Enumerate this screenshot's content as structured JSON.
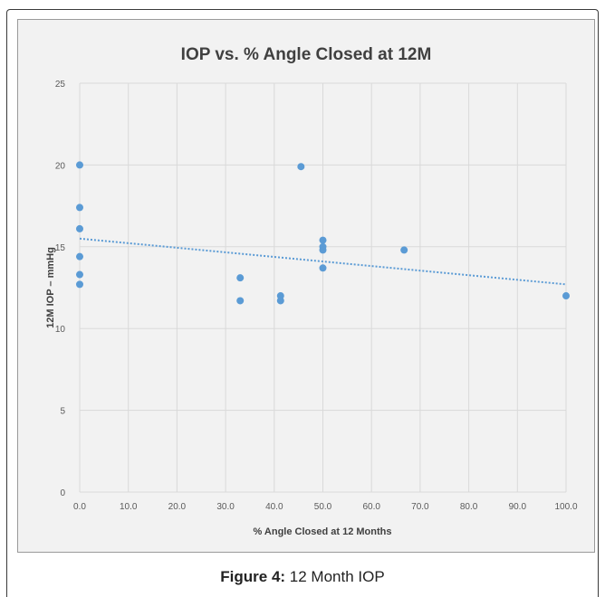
{
  "chart_data": {
    "type": "scatter",
    "title": "IOP vs. % Angle Closed at 12M",
    "xlabel": "% Angle Closed at 12 Months",
    "ylabel": "12M IOP – mmHg",
    "xlim": [
      0,
      100
    ],
    "ylim": [
      0,
      25
    ],
    "x_ticks": [
      "0.0",
      "10.0",
      "20.0",
      "30.0",
      "40.0",
      "50.0",
      "60.0",
      "70.0",
      "80.0",
      "90.0",
      "100.0"
    ],
    "y_ticks": [
      "0",
      "5",
      "10",
      "15",
      "20",
      "25"
    ],
    "grid": true,
    "series": [
      {
        "color": "#5b9bd5",
        "points": [
          {
            "x": 0,
            "y": 20.0
          },
          {
            "x": 0,
            "y": 17.4
          },
          {
            "x": 0,
            "y": 16.1
          },
          {
            "x": 0,
            "y": 14.4
          },
          {
            "x": 0,
            "y": 13.3
          },
          {
            "x": 0,
            "y": 12.7
          },
          {
            "x": 33.0,
            "y": 13.1
          },
          {
            "x": 33.0,
            "y": 11.7
          },
          {
            "x": 41.3,
            "y": 12.0
          },
          {
            "x": 41.3,
            "y": 11.7
          },
          {
            "x": 45.5,
            "y": 19.9
          },
          {
            "x": 50.0,
            "y": 15.4
          },
          {
            "x": 50.0,
            "y": 15.0
          },
          {
            "x": 50.0,
            "y": 14.8
          },
          {
            "x": 50.0,
            "y": 13.7
          },
          {
            "x": 66.7,
            "y": 14.8
          },
          {
            "x": 100.0,
            "y": 12.0
          }
        ]
      }
    ],
    "trendline": {
      "type": "linear",
      "style": "dotted",
      "color": "#5b9bd5",
      "y_at_xmin": 15.5,
      "y_at_xmax": 12.7
    }
  },
  "caption": {
    "label": "Figure 4:",
    "text": " 12 Month IOP"
  }
}
